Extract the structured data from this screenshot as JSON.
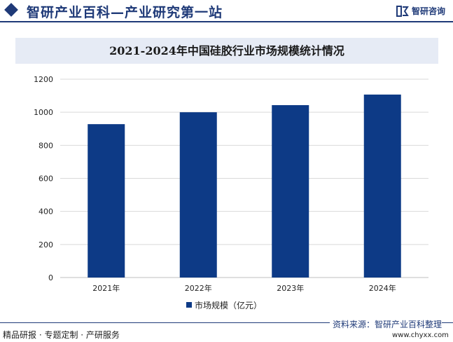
{
  "header": {
    "title": "智研产业百科—产业研究第一站",
    "logo_text": "智研咨询",
    "brand_color": "#1f3a78"
  },
  "chart_data": {
    "type": "bar",
    "title": "2021-2024年中国硅胶行业市场规模统计情况",
    "categories": [
      "2021年",
      "2022年",
      "2023年",
      "2024年"
    ],
    "series": [
      {
        "name": "市场规模（亿元）",
        "values": [
          928,
          1000,
          1043,
          1107
        ],
        "color": "#0d3a86"
      }
    ],
    "ylim": [
      0,
      1200
    ],
    "yticks": [
      0,
      200,
      400,
      600,
      800,
      1000,
      1200
    ],
    "grid": true,
    "legend": "bottom"
  },
  "footer": {
    "left_text": "精品研报 · 专题定制 · 产研服务",
    "source": "资料来源：智研产业百科整理",
    "url": "www.chyxx.com"
  }
}
